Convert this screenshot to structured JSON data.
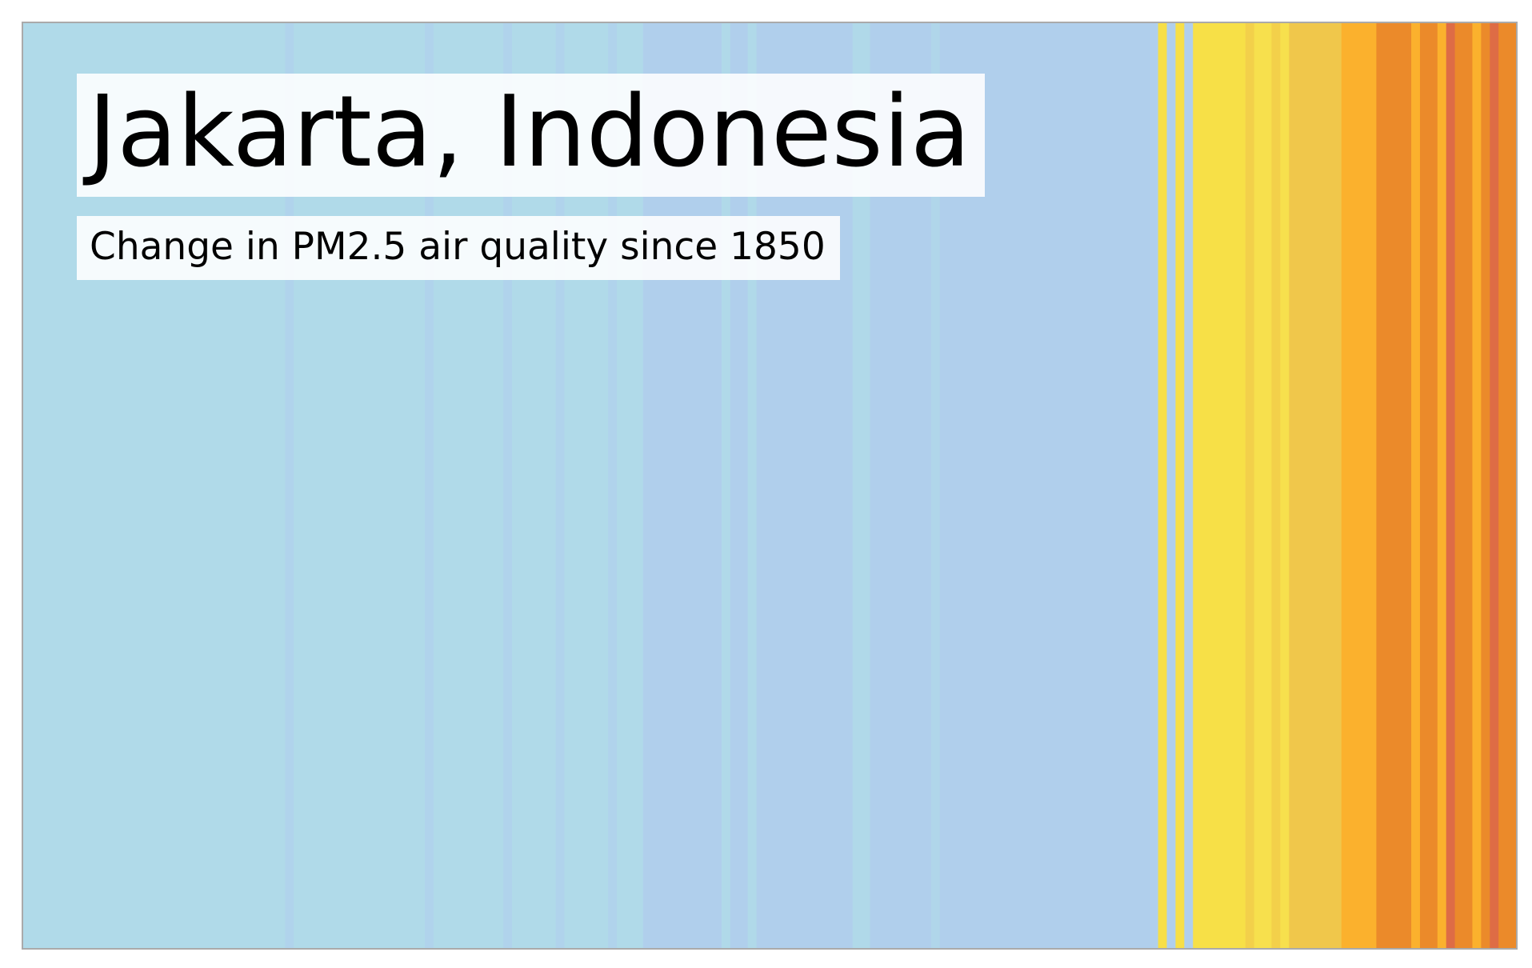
{
  "chart_data": {
    "type": "heatmap",
    "title": "Jakarta, Indonesia",
    "subtitle": "Change in PM2.5 air quality since 1850",
    "xlabel": "",
    "ylabel": "",
    "x_start": 1850,
    "x_end": 2021,
    "grid": false,
    "legend": "none",
    "palette": {
      "low_light_blue": "#b0dae9",
      "low_blue": "#b0cfec",
      "yellow": "#f7e047",
      "yellow_light": "#f7e04d",
      "yellow_dark": "#f3d04a",
      "mustard": "#f0c74b",
      "orange_light": "#fbb12d",
      "orange": "#eb8a2a",
      "red_orange": "#de6c45"
    },
    "bands": [
      {
        "from": 1850,
        "to": 1880,
        "color": "#b0dae9"
      },
      {
        "from": 1880,
        "to": 1881,
        "color": "#b0d3ec"
      },
      {
        "from": 1881,
        "to": 1896,
        "color": "#b0dae9"
      },
      {
        "from": 1896,
        "to": 1897,
        "color": "#b0d3ec"
      },
      {
        "from": 1897,
        "to": 1905,
        "color": "#b0dae9"
      },
      {
        "from": 1905,
        "to": 1906,
        "color": "#b0d3ec"
      },
      {
        "from": 1906,
        "to": 1911,
        "color": "#b0dae9"
      },
      {
        "from": 1911,
        "to": 1912,
        "color": "#b0d3ec"
      },
      {
        "from": 1912,
        "to": 1917,
        "color": "#b0dae9"
      },
      {
        "from": 1917,
        "to": 1918,
        "color": "#b0d3ec"
      },
      {
        "from": 1918,
        "to": 1921,
        "color": "#b0dae9"
      },
      {
        "from": 1921,
        "to": 1930,
        "color": "#b0cfec"
      },
      {
        "from": 1930,
        "to": 1931,
        "color": "#b0d9e9"
      },
      {
        "from": 1931,
        "to": 1933,
        "color": "#b0cfec"
      },
      {
        "from": 1933,
        "to": 1934,
        "color": "#b0d9e9"
      },
      {
        "from": 1934,
        "to": 1945,
        "color": "#b0cfec"
      },
      {
        "from": 1945,
        "to": 1947,
        "color": "#b0d9e9"
      },
      {
        "from": 1947,
        "to": 1954,
        "color": "#b0cfec"
      },
      {
        "from": 1954,
        "to": 1955,
        "color": "#b0d6ea"
      },
      {
        "from": 1955,
        "to": 1980,
        "color": "#b0cfec"
      },
      {
        "from": 1980,
        "to": 1981,
        "color": "#f7df47"
      },
      {
        "from": 1981,
        "to": 1982,
        "color": "#b0cfec"
      },
      {
        "from": 1982,
        "to": 1983,
        "color": "#f7df47"
      },
      {
        "from": 1983,
        "to": 1984,
        "color": "#b0cfec"
      },
      {
        "from": 1984,
        "to": 1990,
        "color": "#f7e047"
      },
      {
        "from": 1990,
        "to": 1991,
        "color": "#f3d04a"
      },
      {
        "from": 1991,
        "to": 1993,
        "color": "#f7e04d"
      },
      {
        "from": 1993,
        "to": 1994,
        "color": "#f3d04a"
      },
      {
        "from": 1994,
        "to": 1995,
        "color": "#f7e04d"
      },
      {
        "from": 1995,
        "to": 2001,
        "color": "#f0c74b"
      },
      {
        "from": 2001,
        "to": 2005,
        "color": "#fbb12d"
      },
      {
        "from": 2005,
        "to": 2009,
        "color": "#eb8a2a"
      },
      {
        "from": 2009,
        "to": 2010,
        "color": "#fbb12d"
      },
      {
        "from": 2010,
        "to": 2012,
        "color": "#eb8a2a"
      },
      {
        "from": 2012,
        "to": 2013,
        "color": "#fbb12d"
      },
      {
        "from": 2013,
        "to": 2014,
        "color": "#de6c45"
      },
      {
        "from": 2014,
        "to": 2016,
        "color": "#eb8a2a"
      },
      {
        "from": 2016,
        "to": 2017,
        "color": "#fbb12d"
      },
      {
        "from": 2017,
        "to": 2018,
        "color": "#eb8a2a"
      },
      {
        "from": 2018,
        "to": 2019,
        "color": "#de6c45"
      },
      {
        "from": 2019,
        "to": 2021,
        "color": "#eb8a2a"
      }
    ]
  }
}
